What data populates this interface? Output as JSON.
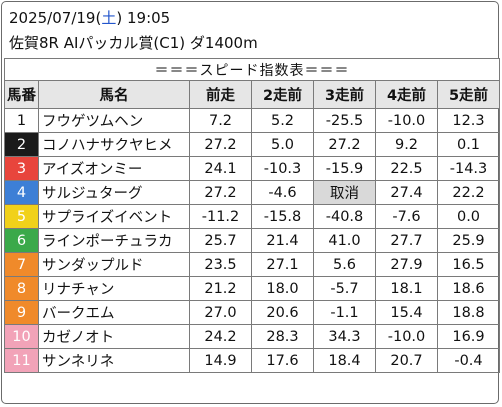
{
  "header": {
    "date": "2025/07/19",
    "weekday": "土",
    "time": "19:05",
    "race": "佐賀8R AIパッカル賞(C1) ダ1400m"
  },
  "table": {
    "title": "＝＝＝スピード指数表＝＝＝",
    "columns": [
      "馬番",
      "馬名",
      "前走",
      "2走前",
      "3走前",
      "4走前",
      "5走前"
    ],
    "rows": [
      {
        "num": "1",
        "name": "フウゲツムヘン",
        "v": [
          "7.2",
          "5.2",
          "-25.5",
          "-10.0",
          "12.3"
        ]
      },
      {
        "num": "2",
        "name": "コノハナサクヤヒメ",
        "v": [
          "27.2",
          "5.0",
          "27.2",
          "9.2",
          "0.1"
        ]
      },
      {
        "num": "3",
        "name": "アイズオンミー",
        "v": [
          "24.1",
          "-10.3",
          "-15.9",
          "22.5",
          "-14.3"
        ]
      },
      {
        "num": "4",
        "name": "サルジュターグ",
        "v": [
          "27.2",
          "-4.6",
          "取消",
          "27.4",
          "22.2"
        ]
      },
      {
        "num": "5",
        "name": "サプライズイベント",
        "v": [
          "-11.2",
          "-15.8",
          "-40.8",
          "-7.6",
          "0.0"
        ]
      },
      {
        "num": "6",
        "name": "ラインポーチュラカ",
        "v": [
          "25.7",
          "21.4",
          "41.0",
          "27.7",
          "25.9"
        ]
      },
      {
        "num": "7",
        "name": "サンダップルド",
        "v": [
          "23.5",
          "27.1",
          "5.6",
          "27.9",
          "16.5"
        ]
      },
      {
        "num": "8",
        "name": "リナチャン",
        "v": [
          "21.2",
          "18.0",
          "-5.7",
          "18.1",
          "18.6"
        ]
      },
      {
        "num": "9",
        "name": "バークエム",
        "v": [
          "27.0",
          "20.6",
          "-1.1",
          "15.4",
          "18.8"
        ]
      },
      {
        "num": "10",
        "name": "カゼノオト",
        "v": [
          "24.2",
          "28.3",
          "34.3",
          "-10.0",
          "16.9"
        ]
      },
      {
        "num": "11",
        "name": "サンネリネ",
        "v": [
          "14.9",
          "17.6",
          "18.4",
          "20.7",
          "-0.4"
        ]
      }
    ]
  },
  "colors": {
    "gate": [
      "#ffffff",
      "#1a1a1a",
      "#e8453c",
      "#3d7fd6",
      "#f1d11a",
      "#3ba94a",
      "#f08a2a",
      "#f08a2a",
      "#f08a2a",
      "#f2a3b8",
      "#f2a3b8"
    ],
    "gate_text": [
      "#111111",
      "#ffffff",
      "#ffffff",
      "#ffffff",
      "#ffffff",
      "#ffffff",
      "#ffffff",
      "#ffffff",
      "#ffffff",
      "#ffffff",
      "#ffffff"
    ],
    "weekday_sat": "#2255cc"
  }
}
